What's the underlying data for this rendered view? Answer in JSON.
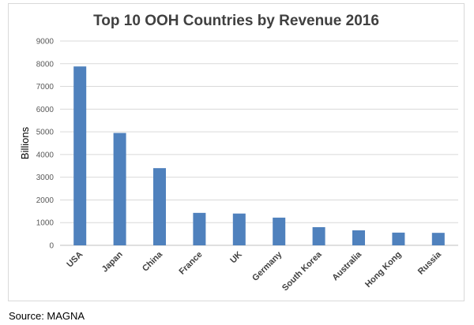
{
  "chart_data": {
    "type": "bar",
    "title": "Top 10 OOH Countries by Revenue 2016",
    "xlabel": "",
    "ylabel": "Billions",
    "categories": [
      "USA",
      "Japan",
      "China",
      "France",
      "UK",
      "Germany",
      "South Korea",
      "Australia",
      "Hong Kong",
      "Russia"
    ],
    "values": [
      7880,
      4950,
      3400,
      1430,
      1400,
      1220,
      800,
      660,
      560,
      550
    ],
    "ylim": [
      0,
      9000
    ],
    "yticks": [
      "0",
      "1000",
      "2000",
      "3000",
      "4000",
      "5000",
      "6000",
      "7000",
      "8000",
      "9000"
    ],
    "grid": true,
    "bar_color": "#4f81bd",
    "grid_color": "#d9d9d9"
  },
  "source": "Source: MAGNA"
}
